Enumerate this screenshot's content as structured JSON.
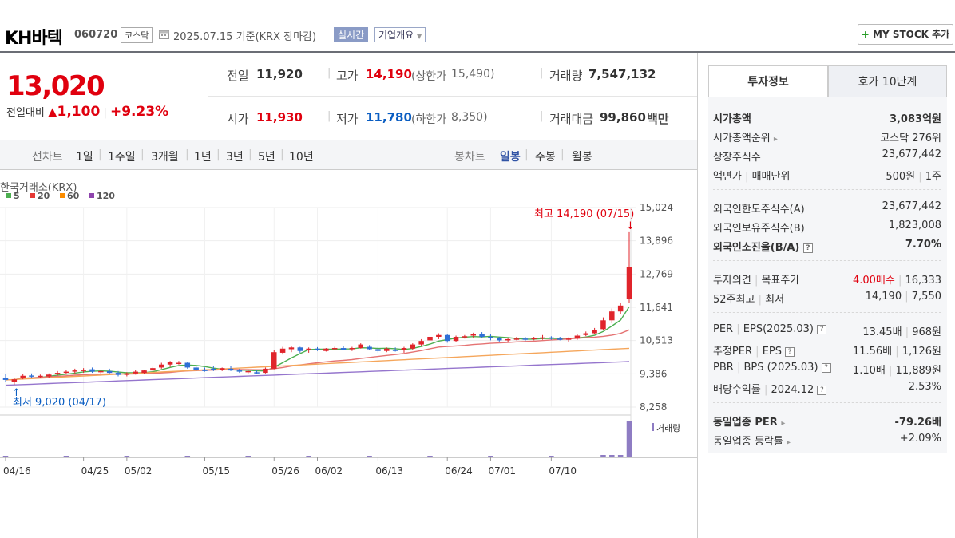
{
  "header": {
    "name": "KH바텍",
    "code": "060720",
    "market": "코스닥",
    "date": "2025.07.15  기준(KRX 장마감)",
    "realtime_label": "실시간",
    "company_label": "기업개요",
    "mystock_label": "MY STOCK 추가"
  },
  "price": {
    "current": "13,020",
    "change_label": "전일대비",
    "change": "1,100",
    "change_pct": "+9.23%"
  },
  "stats": {
    "prev_label": "전일",
    "prev": "11,920",
    "high_label": "고가",
    "high": "14,190",
    "upper_label": "(상한가",
    "upper": "15,490)",
    "vol_label": "거래량",
    "vol": "7,547,132",
    "open_label": "시가",
    "open": "11,930",
    "low_label": "저가",
    "low": "11,780",
    "lower_label": "(하한가",
    "lower": "8,350)",
    "amt_label": "거래대금",
    "amt": "99,860",
    "amt_unit": "백만"
  },
  "period_bar": {
    "line_label": "선차트",
    "line_options": [
      "1일",
      "1주일",
      "3개월",
      "1년",
      "3년",
      "5년",
      "10년"
    ],
    "candle_label": "봉차트",
    "candle_options": [
      "일봉",
      "주봉",
      "월봉"
    ],
    "selected": "일봉"
  },
  "chart_data": {
    "type": "candlestick",
    "source": "한국거래소(KRX)",
    "legend": [
      {
        "name": "5",
        "color": "#4caf50"
      },
      {
        "name": "20",
        "color": "#e53935"
      },
      {
        "name": "60",
        "color": "#fb8c00"
      },
      {
        "name": "120",
        "color": "#8e44ad"
      }
    ],
    "y_ticks": [
      "15,024",
      "13,896",
      "12,769",
      "11,641",
      "10,513",
      "9,386",
      "8,258"
    ],
    "ylim": [
      8258,
      15024
    ],
    "x_ticks": [
      "04/16",
      "04/25",
      "05/02",
      "05/15",
      "05/26",
      "06/02",
      "06/13",
      "06/24",
      "07/01",
      "07/10"
    ],
    "annotations": {
      "high": "최고 14,190 (07/15)",
      "low": "최저 9,020 (04/17)"
    },
    "volume_label": "거래량",
    "candles": [
      [
        9240,
        9380,
        9100,
        9180
      ],
      [
        9100,
        9240,
        9020,
        9200
      ],
      [
        9260,
        9380,
        9200,
        9320
      ],
      [
        9330,
        9400,
        9260,
        9300
      ],
      [
        9300,
        9360,
        9240,
        9320
      ],
      [
        9300,
        9400,
        9240,
        9360
      ],
      [
        9380,
        9480,
        9320,
        9420
      ],
      [
        9420,
        9520,
        9360,
        9460
      ],
      [
        9460,
        9560,
        9400,
        9500
      ],
      [
        9480,
        9580,
        9420,
        9520
      ],
      [
        9540,
        9600,
        9420,
        9460
      ],
      [
        9440,
        9520,
        9380,
        9480
      ],
      [
        9480,
        9560,
        9400,
        9420
      ],
      [
        9420,
        9480,
        9300,
        9350
      ],
      [
        9350,
        9440,
        9300,
        9400
      ],
      [
        9400,
        9520,
        9360,
        9460
      ],
      [
        9420,
        9520,
        9380,
        9500
      ],
      [
        9500,
        9620,
        9460,
        9580
      ],
      [
        9600,
        9760,
        9560,
        9700
      ],
      [
        9700,
        9820,
        9620,
        9780
      ],
      [
        9760,
        9820,
        9700,
        9760
      ],
      [
        9760,
        9800,
        9560,
        9600
      ],
      [
        9600,
        9660,
        9480,
        9520
      ],
      [
        9520,
        9600,
        9460,
        9500
      ],
      [
        9560,
        9640,
        9480,
        9520
      ],
      [
        9520,
        9600,
        9480,
        9580
      ],
      [
        9560,
        9640,
        9480,
        9500
      ],
      [
        9500,
        9560,
        9420,
        9460
      ],
      [
        9460,
        9540,
        9400,
        9480
      ],
      [
        9440,
        9500,
        9380,
        9420
      ],
      [
        9420,
        9600,
        9400,
        9560
      ],
      [
        9560,
        10200,
        9540,
        10120
      ],
      [
        10100,
        10300,
        10040,
        10240
      ],
      [
        10220,
        10330,
        10120,
        10280
      ],
      [
        10280,
        10300,
        10100,
        10160
      ],
      [
        10180,
        10280,
        10100,
        10240
      ],
      [
        10240,
        10290,
        10160,
        10200
      ],
      [
        10160,
        10260,
        10140,
        10240
      ],
      [
        10240,
        10300,
        10180,
        10260
      ],
      [
        10260,
        10340,
        10180,
        10200
      ],
      [
        10220,
        10300,
        10160,
        10260
      ],
      [
        10260,
        10420,
        10240,
        10380
      ],
      [
        10300,
        10360,
        10200,
        10220
      ],
      [
        10220,
        10300,
        10100,
        10160
      ],
      [
        10160,
        10280,
        10120,
        10240
      ],
      [
        10200,
        10280,
        10140,
        10180
      ],
      [
        10180,
        10300,
        10100,
        10260
      ],
      [
        10240,
        10420,
        10200,
        10380
      ],
      [
        10380,
        10560,
        10340,
        10500
      ],
      [
        10520,
        10700,
        10480,
        10640
      ],
      [
        10640,
        10760,
        10560,
        10700
      ],
      [
        10700,
        10740,
        10440,
        10500
      ],
      [
        10500,
        10680,
        10460,
        10640
      ],
      [
        10640,
        10700,
        10580,
        10660
      ],
      [
        10680,
        10780,
        10600,
        10740
      ],
      [
        10740,
        10800,
        10600,
        10640
      ],
      [
        10640,
        10720,
        10520,
        10600
      ],
      [
        10600,
        10640,
        10480,
        10520
      ],
      [
        10520,
        10600,
        10460,
        10560
      ],
      [
        10560,
        10640,
        10520,
        10580
      ],
      [
        10580,
        10640,
        10500,
        10540
      ],
      [
        10560,
        10640,
        10520,
        10600
      ],
      [
        10600,
        10700,
        10540,
        10620
      ],
      [
        10620,
        10660,
        10540,
        10580
      ],
      [
        10580,
        10640,
        10520,
        10560
      ],
      [
        10540,
        10620,
        10480,
        10580
      ],
      [
        10580,
        10720,
        10540,
        10680
      ],
      [
        10700,
        10820,
        10660,
        10760
      ],
      [
        10760,
        10940,
        10740,
        10880
      ],
      [
        10900,
        11300,
        10880,
        11200
      ],
      [
        11200,
        11600,
        11100,
        11500
      ],
      [
        11500,
        11800,
        11400,
        11700
      ],
      [
        11930,
        14190,
        11780,
        13020
      ]
    ]
  },
  "right_panel": {
    "tabs": [
      "투자정보",
      "호가 10단계"
    ],
    "group1": [
      {
        "k": "시가총액",
        "v": "3,083억원",
        "bold": true
      },
      {
        "k": "시가총액순위",
        "v": "코스닥 276위",
        "arrow": true
      },
      {
        "k": "상장주식수",
        "v": "23,677,442"
      },
      {
        "k1": "액면가",
        "k2": "매매단위",
        "v1": "500원",
        "v2": "1주"
      }
    ],
    "group2": [
      {
        "k": "외국인한도주식수(A)",
        "v": "23,677,442"
      },
      {
        "k": "외국인보유주식수(B)",
        "v": "1,823,008"
      },
      {
        "k": "외국인소진율(B/A)",
        "v": "7.70%",
        "bold": true,
        "q": true
      }
    ],
    "group3": [
      {
        "k1": "투자의견",
        "k2": "목표주가",
        "v1": "4.00매수",
        "v2": "16,333"
      },
      {
        "k1": "52주최고",
        "k2": "최저",
        "v1": "14,190",
        "v2": "7,550"
      }
    ],
    "group4": [
      {
        "k1": "PER",
        "k2": "EPS(2025.03)",
        "v1": "13.45배",
        "v2": "968원"
      },
      {
        "k1": "추정PER",
        "k2": "EPS",
        "v1": "11.56배",
        "v2": "1,126원"
      },
      {
        "k1": "PBR",
        "k2": "BPS (2025.03)",
        "v1": "1.10배",
        "v2": "11,889원"
      },
      {
        "k1": "배당수익률",
        "k2": "2024.12",
        "v1": "2.53%"
      }
    ],
    "group5": [
      {
        "k": "동일업종 PER",
        "v": "-79.26배"
      },
      {
        "k": "동일업종 등락률",
        "v": "+2.09%"
      }
    ]
  }
}
